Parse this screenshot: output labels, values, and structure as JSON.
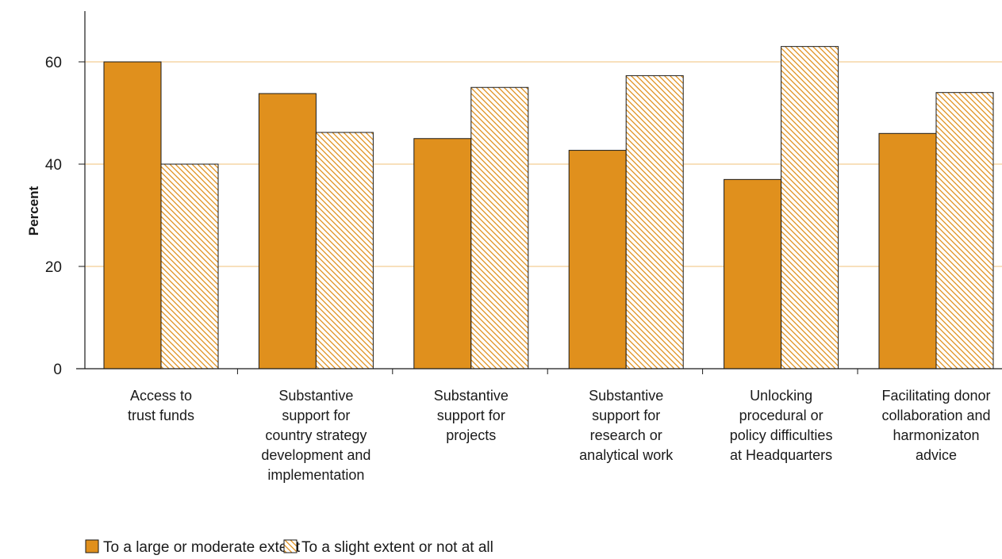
{
  "chart_data": {
    "type": "bar",
    "ylabel": "Percent",
    "ylim": [
      0,
      70
    ],
    "yticks": [
      0,
      20,
      40,
      60
    ],
    "grid": true,
    "legend_position": "bottom-left",
    "categories": [
      [
        "Access to",
        "trust funds"
      ],
      [
        "Substantive",
        "support for",
        "country strategy",
        "development and",
        "implementation"
      ],
      [
        "Substantive",
        "support for",
        "projects"
      ],
      [
        "Substantive",
        "support for",
        "research or",
        "analytical work"
      ],
      [
        "Unlocking",
        "procedural or",
        "policy difficulties",
        "at Headquarters"
      ],
      [
        "Facilitating donor",
        "collaboration and",
        "harmonizaton",
        "advice"
      ]
    ],
    "series": [
      {
        "name": "To a large or moderate extent",
        "values": [
          60,
          53.8,
          45,
          42.7,
          37,
          46
        ]
      },
      {
        "name": "To a slight extent or not at all",
        "values": [
          40,
          46.2,
          55,
          57.3,
          63,
          54
        ]
      }
    ]
  },
  "colors": {
    "solid": "#E0901D",
    "hatch": "#E0901D",
    "gridline": "#F2C27A",
    "axis": "#1a1a1a"
  }
}
